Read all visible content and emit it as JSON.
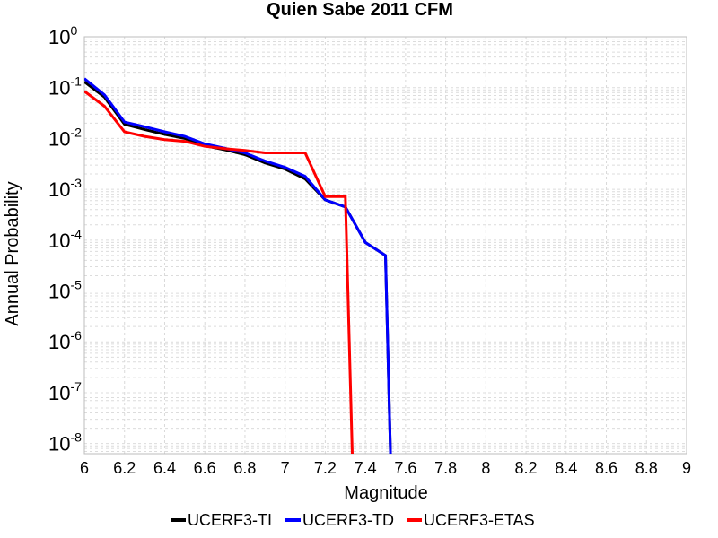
{
  "chart_data": {
    "type": "line",
    "title": "Quien Sabe 2011 CFM",
    "xlabel": "Magnitude",
    "ylabel": "Annual Probability",
    "xlim": [
      6,
      9
    ],
    "ylim_log10": [
      -8.2,
      0
    ],
    "x_ticks": [
      "6",
      "6.2",
      "6.4",
      "6.6",
      "6.8",
      "7",
      "7.2",
      "7.4",
      "7.6",
      "7.8",
      "8",
      "8.2",
      "8.4",
      "8.6",
      "8.8",
      "9"
    ],
    "y_ticks": [
      {
        "base": "10",
        "exp": "0",
        "log": 0
      },
      {
        "base": "10",
        "exp": "-1",
        "log": -1
      },
      {
        "base": "10",
        "exp": "-2",
        "log": -2
      },
      {
        "base": "10",
        "exp": "-3",
        "log": -3
      },
      {
        "base": "10",
        "exp": "-4",
        "log": -4
      },
      {
        "base": "10",
        "exp": "-5",
        "log": -5
      },
      {
        "base": "10",
        "exp": "-6",
        "log": -6
      },
      {
        "base": "10",
        "exp": "-7",
        "log": -7
      },
      {
        "base": "10",
        "exp": "-8",
        "log": -8
      }
    ],
    "grid": true,
    "legend_position": "bottom-center",
    "series": [
      {
        "name": "UCERF3-TI",
        "color": "#000000",
        "x": [
          6.0,
          6.1,
          6.2,
          6.3,
          6.4,
          6.5,
          6.6,
          6.7,
          6.8,
          6.9,
          7.0,
          7.1,
          7.2,
          7.3,
          7.4,
          7.5,
          7.53
        ],
        "y": [
          0.13,
          0.065,
          0.019,
          0.015,
          0.012,
          0.01,
          0.0072,
          0.006,
          0.0048,
          0.0033,
          0.0025,
          0.0016,
          0.00062,
          0.00045,
          9e-05,
          5e-05,
          1e-09
        ]
      },
      {
        "name": "UCERF3-TD",
        "color": "#0000ff",
        "x": [
          6.0,
          6.1,
          6.2,
          6.3,
          6.4,
          6.5,
          6.6,
          6.7,
          6.8,
          6.9,
          7.0,
          7.1,
          7.2,
          7.3,
          7.4,
          7.5,
          7.53
        ],
        "y": [
          0.15,
          0.072,
          0.021,
          0.017,
          0.0135,
          0.011,
          0.0078,
          0.0064,
          0.0052,
          0.0036,
          0.0027,
          0.0018,
          0.00062,
          0.00045,
          9e-05,
          5e-05,
          1e-09
        ]
      },
      {
        "name": "UCERF3-ETAS",
        "color": "#ff0000",
        "x": [
          6.0,
          6.1,
          6.2,
          6.3,
          6.4,
          6.5,
          6.6,
          6.7,
          6.8,
          6.9,
          7.0,
          7.1,
          7.2,
          7.3,
          7.34
        ],
        "y": [
          0.085,
          0.043,
          0.0135,
          0.011,
          0.0095,
          0.0088,
          0.007,
          0.0063,
          0.0058,
          0.0052,
          0.0052,
          0.0052,
          0.00072,
          0.00072,
          1e-09
        ]
      }
    ]
  }
}
